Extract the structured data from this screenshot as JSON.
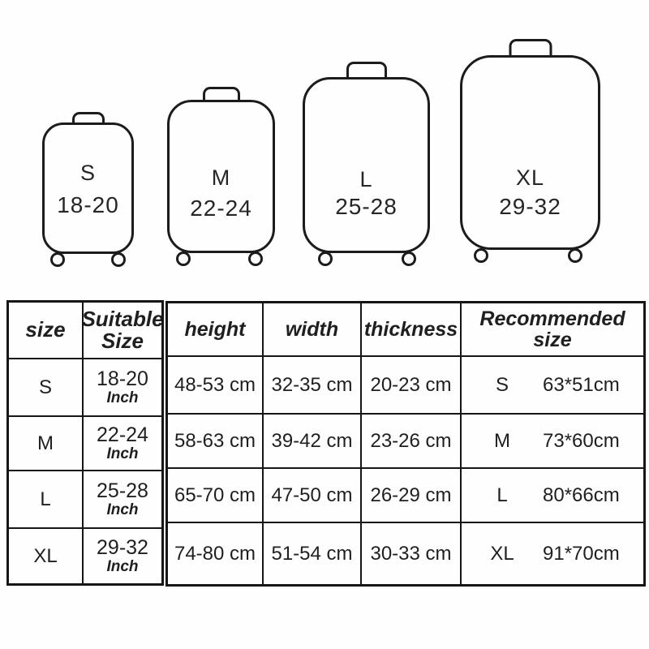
{
  "page": {
    "background": "#fefefe",
    "line_color": "#1c1c1c"
  },
  "suitcases": [
    {
      "label": "S",
      "range": "18-20"
    },
    {
      "label": "M",
      "range": "22-24"
    },
    {
      "label": "L",
      "range": "25-28"
    },
    {
      "label": "XL",
      "range": "29-32"
    }
  ],
  "size_table": {
    "headers": {
      "size": "size",
      "suitable": "Suitable Size"
    },
    "rows": [
      {
        "size": "S",
        "range": "18-20",
        "unit": "Inch"
      },
      {
        "size": "M",
        "range": "22-24",
        "unit": "Inch"
      },
      {
        "size": "L",
        "range": "25-28",
        "unit": "Inch"
      },
      {
        "size": "XL",
        "range": "29-32",
        "unit": "Inch"
      }
    ]
  },
  "dimension_table": {
    "headers": {
      "height": "height",
      "width": "width",
      "thickness": "thickness",
      "recommended": "Recommended size"
    },
    "rows": [
      {
        "height": "48-53 cm",
        "width": "32-35 cm",
        "thickness": "20-23 cm",
        "rec_label": "S",
        "rec_value": "63*51cm"
      },
      {
        "height": "58-63 cm",
        "width": "39-42 cm",
        "thickness": "23-26 cm",
        "rec_label": "M",
        "rec_value": "73*60cm"
      },
      {
        "height": "65-70 cm",
        "width": "47-50 cm",
        "thickness": "26-29 cm",
        "rec_label": "L",
        "rec_value": "80*66cm"
      },
      {
        "height": "74-80 cm",
        "width": "51-54 cm",
        "thickness": "30-33 cm",
        "rec_label": "XL",
        "rec_value": "91*70cm"
      }
    ]
  }
}
